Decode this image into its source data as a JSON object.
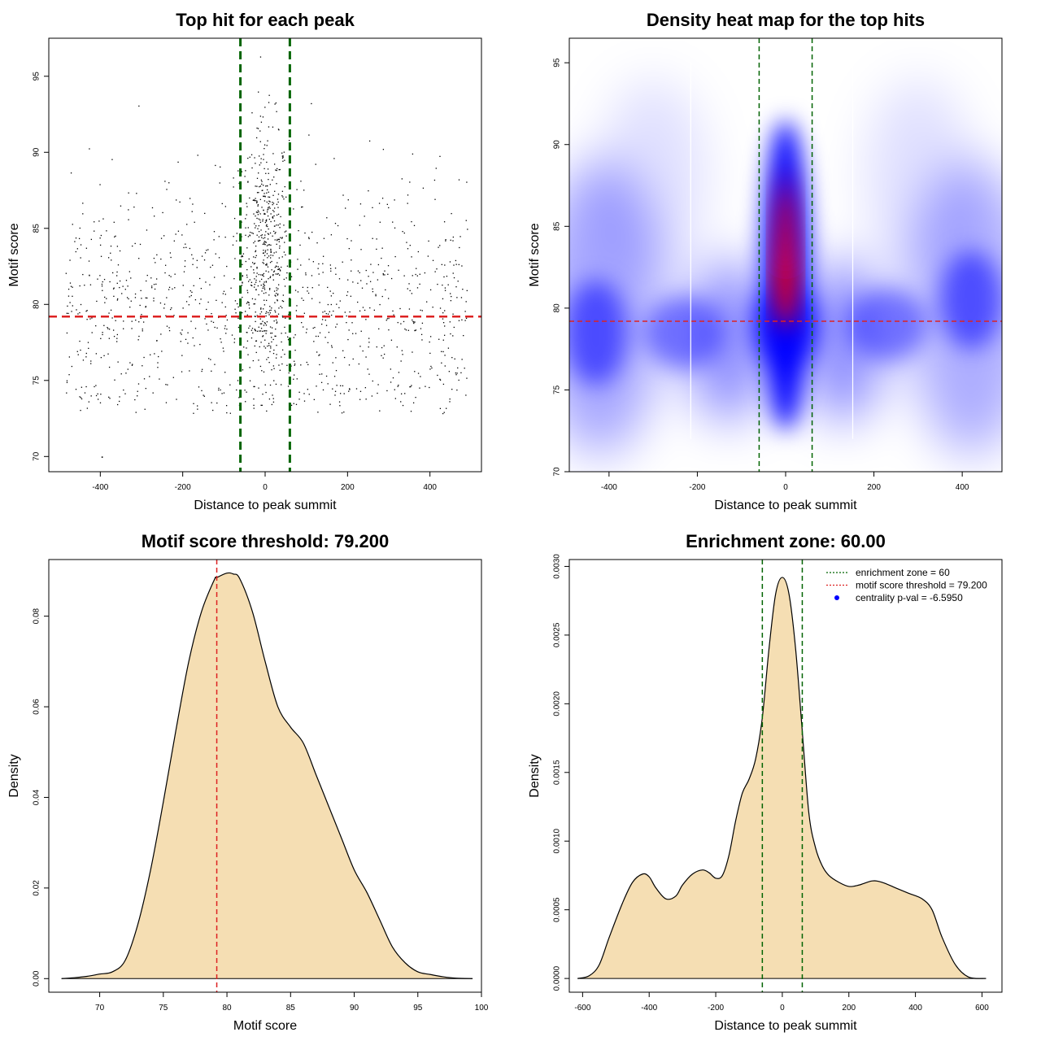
{
  "chart_data": [
    {
      "type": "scatter",
      "title": "Top hit for each peak",
      "xlabel": "Distance to peak summit",
      "ylabel": "Motif score",
      "xlim": [
        -525,
        525
      ],
      "ylim": [
        69,
        97.5
      ],
      "xticks": [
        -400,
        -200,
        0,
        200,
        400
      ],
      "xtick_labels": [
        "-400",
        "-200",
        "0",
        "200",
        "400"
      ],
      "yticks": [
        70,
        75,
        80,
        85,
        90,
        95
      ],
      "ytick_labels": [
        "70",
        "75",
        "80",
        "85",
        "90",
        "95"
      ],
      "vlines": [
        -60,
        60
      ],
      "hline": 79.2,
      "vline_color": "#006400",
      "hline_color": "#dd2222",
      "point_color": "#000000",
      "n_points": 1500,
      "distribution": "central column between -60 and 60 concentrated at scores 78-90 (max ~96); diffuse background from -480 to 490 at scores 73-93"
    },
    {
      "type": "heatmap",
      "title": "Density heat map for the top hits",
      "xlabel": "Distance to peak summit",
      "ylabel": "Motif score",
      "xlim": [
        -490,
        490
      ],
      "ylim": [
        70,
        96.5
      ],
      "xticks": [
        -400,
        -200,
        0,
        200,
        400
      ],
      "xtick_labels": [
        "-400",
        "-200",
        "0",
        "200",
        "400"
      ],
      "yticks": [
        70,
        75,
        80,
        85,
        90,
        95
      ],
      "ytick_labels": [
        "70",
        "75",
        "80",
        "85",
        "90",
        "95"
      ],
      "vlines": [
        -60,
        60
      ],
      "hline": 79.2,
      "color_scale": [
        "#ffffff",
        "#0000ff",
        "#ff0000"
      ],
      "peak": {
        "x": 0,
        "y": 83
      },
      "vline_color": "#006400",
      "hline_color": "#dd2222"
    },
    {
      "type": "area",
      "title": "Motif score threshold: 79.200",
      "xlabel": "Motif score",
      "ylabel": "Density",
      "xlim": [
        66,
        100
      ],
      "ylim": [
        -0.003,
        0.0925
      ],
      "xticks": [
        70,
        75,
        80,
        85,
        90,
        95,
        100
      ],
      "xtick_labels": [
        "70",
        "75",
        "80",
        "85",
        "90",
        "95",
        "100"
      ],
      "yticks": [
        0,
        0.02,
        0.04,
        0.06,
        0.08
      ],
      "ytick_labels": [
        "0.00",
        "0.02",
        "0.04",
        "0.06",
        "0.08"
      ],
      "x": [
        67,
        68,
        69,
        70,
        71,
        72,
        73,
        74,
        75,
        76,
        77,
        78,
        79,
        79.2,
        80,
        80.5,
        81,
        82,
        83,
        84,
        85,
        86,
        87,
        88,
        89,
        90,
        91,
        92,
        93,
        94,
        95,
        96,
        97,
        98,
        99.3
      ],
      "y": [
        0,
        0.0002,
        0.0005,
        0.001,
        0.0015,
        0.004,
        0.012,
        0.024,
        0.039,
        0.055,
        0.07,
        0.081,
        0.088,
        0.0885,
        0.0895,
        0.0893,
        0.0883,
        0.081,
        0.07,
        0.06,
        0.0555,
        0.052,
        0.045,
        0.038,
        0.031,
        0.024,
        0.019,
        0.013,
        0.007,
        0.0035,
        0.0015,
        0.0009,
        0.0004,
        0.0001,
        0
      ],
      "fill": "#f5deb3",
      "threshold": 79.2,
      "threshold_color": "#dd2222"
    },
    {
      "type": "area",
      "title": "Enrichment zone: 60.00",
      "xlabel": "Distance to peak summit",
      "ylabel": "Density",
      "xlim": [
        -640,
        660
      ],
      "ylim": [
        -0.0001,
        0.00305
      ],
      "xticks": [
        -600,
        -400,
        -200,
        0,
        200,
        400,
        600
      ],
      "xtick_labels": [
        "-600",
        "-400",
        "-200",
        "0",
        "200",
        "400",
        "600"
      ],
      "yticks": [
        0,
        0.0005,
        0.001,
        0.0015,
        0.002,
        0.0025,
        0.003
      ],
      "ytick_labels": [
        "0.0000",
        "0.0005",
        "0.0010",
        "0.0015",
        "0.0020",
        "0.0025",
        "0.0030"
      ],
      "x": [
        -615,
        -580,
        -550,
        -520,
        -480,
        -450,
        -420,
        -400,
        -380,
        -350,
        -320,
        -300,
        -270,
        -240,
        -220,
        -200,
        -180,
        -160,
        -140,
        -120,
        -100,
        -80,
        -60,
        -40,
        -20,
        0,
        20,
        40,
        60,
        80,
        100,
        120,
        140,
        170,
        200,
        230,
        270,
        300,
        340,
        380,
        420,
        450,
        480,
        520,
        560,
        612
      ],
      "y": [
        0,
        2e-05,
        0.0001,
        0.0003,
        0.00055,
        0.0007,
        0.00076,
        0.00074,
        0.00066,
        0.00058,
        0.0006,
        0.00068,
        0.00076,
        0.00079,
        0.00077,
        0.00073,
        0.00075,
        0.0009,
        0.00115,
        0.00135,
        0.00145,
        0.0016,
        0.0019,
        0.0024,
        0.0028,
        0.00292,
        0.0028,
        0.0024,
        0.0018,
        0.0012,
        0.00095,
        0.00082,
        0.00075,
        0.0007,
        0.00067,
        0.00068,
        0.00071,
        0.0007,
        0.00066,
        0.00062,
        0.00058,
        0.0005,
        0.0003,
        0.0001,
        1e-05,
        0
      ],
      "fill": "#f5deb3",
      "vlines": [
        -60,
        60
      ],
      "vline_color": "#006400",
      "legend": [
        {
          "label": "enrichment zone = 60",
          "kind": "dotted",
          "color": "#006400"
        },
        {
          "label": "motif score threshold = 79.200",
          "kind": "dotted",
          "color": "#dd2222"
        },
        {
          "label": "centrality p-val = -6.5950",
          "kind": "point",
          "color": "#0000ff"
        }
      ],
      "legend_position": "top-right"
    }
  ]
}
